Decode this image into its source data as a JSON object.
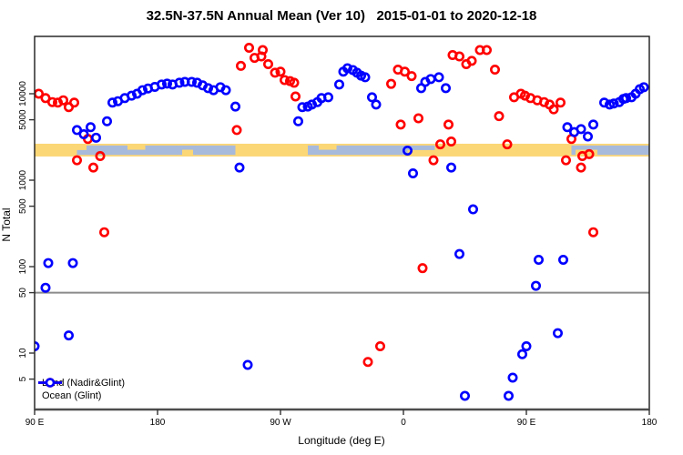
{
  "chart_data": {
    "type": "scatter",
    "title": "32.5N-37.5N Annual Mean (Ver 10)   2015-01-01 to 2020-12-18",
    "xlabel": "Longitude (deg E)",
    "ylabel": "N Total",
    "x_axis": {
      "note": "longitude axis unwrapped eastward, starts at 90E and wraps past 180 through 90W, 0, 90E to 180",
      "range": [
        90,
        540
      ],
      "ticks": [
        {
          "pos": 90,
          "label": "90 E"
        },
        {
          "pos": 180,
          "label": "180"
        },
        {
          "pos": 270,
          "label": "90 W"
        },
        {
          "pos": 360,
          "label": "0"
        },
        {
          "pos": 450,
          "label": "90 E"
        },
        {
          "pos": 540,
          "label": "180"
        }
      ]
    },
    "y_axis": {
      "scale": "log10",
      "tick_values": [
        10000,
        5000,
        1000,
        500,
        100,
        50,
        10,
        5
      ],
      "tick_labels": [
        "10000",
        "5000",
        "1000",
        "500",
        "100",
        "50",
        "10",
        "5"
      ],
      "top_value": 46000,
      "bottom_value": 2.2,
      "hline_value": 50
    },
    "series": [
      {
        "name": "Land (Nadir&Glint)",
        "color": "#ff0000",
        "points": [
          [
            93,
            10000
          ],
          [
            98,
            8900
          ],
          [
            103,
            8000
          ],
          [
            107,
            7900
          ],
          [
            111,
            8400
          ],
          [
            115,
            7000
          ],
          [
            119,
            7900
          ],
          [
            129,
            3000
          ],
          [
            121,
            1700
          ],
          [
            133,
            1400
          ],
          [
            138,
            1900
          ],
          [
            141,
            250
          ],
          [
            238,
            3800
          ],
          [
            241,
            21000
          ],
          [
            247,
            34000
          ],
          [
            251,
            26000
          ],
          [
            256,
            27000
          ],
          [
            257,
            32000
          ],
          [
            261,
            22000
          ],
          [
            266,
            17500
          ],
          [
            270,
            18000
          ],
          [
            273,
            14400
          ],
          [
            277,
            14000
          ],
          [
            280,
            13400
          ],
          [
            281,
            9300
          ],
          [
            334,
            7.9
          ],
          [
            343,
            12
          ],
          [
            351,
            13000
          ],
          [
            356,
            19000
          ],
          [
            361,
            18000
          ],
          [
            366,
            16000
          ],
          [
            371,
            5200
          ],
          [
            358,
            4400
          ],
          [
            382,
            1700
          ],
          [
            387,
            2600
          ],
          [
            393,
            4400
          ],
          [
            395,
            2800
          ],
          [
            374,
            96
          ],
          [
            396,
            28000
          ],
          [
            401,
            27000
          ],
          [
            406,
            22000
          ],
          [
            410,
            24000
          ],
          [
            416,
            32000
          ],
          [
            421,
            32000
          ],
          [
            427,
            19000
          ],
          [
            430,
            5500
          ],
          [
            436,
            2600
          ],
          [
            441,
            9100
          ],
          [
            446,
            10000
          ],
          [
            449,
            9500
          ],
          [
            453,
            8900
          ],
          [
            458,
            8400
          ],
          [
            463,
            8000
          ],
          [
            467,
            7500
          ],
          [
            470,
            6600
          ],
          [
            475,
            7900
          ],
          [
            483,
            3000
          ],
          [
            479,
            1700
          ],
          [
            491,
            1900
          ],
          [
            490,
            1400
          ],
          [
            496,
            2000
          ],
          [
            499,
            250
          ]
        ]
      },
      {
        "name": "Ocean (Glint)",
        "color": "#0000ff",
        "points": [
          [
            100,
            110
          ],
          [
            118,
            110
          ],
          [
            98,
            57
          ],
          [
            115,
            16
          ],
          [
            90,
            12
          ],
          [
            121,
            3800
          ],
          [
            126,
            3400
          ],
          [
            131,
            4100
          ],
          [
            135,
            3100
          ],
          [
            143,
            4800
          ],
          [
            147,
            7900
          ],
          [
            151,
            8200
          ],
          [
            156,
            8900
          ],
          [
            161,
            9500
          ],
          [
            165,
            10000
          ],
          [
            169,
            11000
          ],
          [
            173,
            11500
          ],
          [
            178,
            12000
          ],
          [
            183,
            12800
          ],
          [
            187,
            13100
          ],
          [
            191,
            12800
          ],
          [
            196,
            13400
          ],
          [
            200,
            13700
          ],
          [
            205,
            13700
          ],
          [
            209,
            13400
          ],
          [
            213,
            12500
          ],
          [
            217,
            11600
          ],
          [
            221,
            11000
          ],
          [
            226,
            11900
          ],
          [
            230,
            11000
          ],
          [
            237,
            7100
          ],
          [
            240,
            1400
          ],
          [
            246,
            7.3
          ],
          [
            283,
            4800
          ],
          [
            286,
            7000
          ],
          [
            290,
            7100
          ],
          [
            293,
            7500
          ],
          [
            297,
            8000
          ],
          [
            300,
            8900
          ],
          [
            305,
            9100
          ],
          [
            313,
            12800
          ],
          [
            316,
            18000
          ],
          [
            319,
            19700
          ],
          [
            323,
            18800
          ],
          [
            326,
            17500
          ],
          [
            329,
            16200
          ],
          [
            332,
            15500
          ],
          [
            337,
            9100
          ],
          [
            340,
            7500
          ],
          [
            363,
            2200
          ],
          [
            367,
            1200
          ],
          [
            373,
            11600
          ],
          [
            376,
            13700
          ],
          [
            380,
            14800
          ],
          [
            386,
            15500
          ],
          [
            391,
            11600
          ],
          [
            395,
            1400
          ],
          [
            411,
            460
          ],
          [
            401,
            140
          ],
          [
            459,
            120
          ],
          [
            477,
            120
          ],
          [
            457,
            60
          ],
          [
            405,
            3.2
          ],
          [
            437,
            3.2
          ],
          [
            440,
            5.2
          ],
          [
            447,
            9.7
          ],
          [
            450,
            12
          ],
          [
            473,
            17
          ],
          [
            480,
            4100
          ],
          [
            485,
            3600
          ],
          [
            490,
            3900
          ],
          [
            495,
            3200
          ],
          [
            499,
            4400
          ],
          [
            507,
            7900
          ],
          [
            511,
            7500
          ],
          [
            514,
            7700
          ],
          [
            518,
            8000
          ],
          [
            521,
            8700
          ],
          [
            523,
            8900
          ],
          [
            527,
            9100
          ],
          [
            530,
            10000
          ],
          [
            533,
            11300
          ],
          [
            536,
            11900
          ]
        ]
      }
    ],
    "density_bands": [
      {
        "name": "land-density-band",
        "color": "#fcd776",
        "value_range": [
          1880,
          2640
        ],
        "segments": [
          [
            90,
            540
          ]
        ]
      },
      {
        "name": "ocean-density-band",
        "color": "#a7badb",
        "value_range": [
          1960,
          2520
        ],
        "segments": [
          [
            128,
            237
          ],
          [
            290,
            363
          ],
          [
            483,
            540
          ]
        ]
      }
    ],
    "band_patches": [
      {
        "color": "#fcd776",
        "lon": [
          158,
          171
        ],
        "v": [
          2250,
          2640
        ]
      },
      {
        "color": "#fcd776",
        "lon": [
          198,
          206
        ],
        "v": [
          1880,
          2250
        ]
      },
      {
        "color": "#fcd776",
        "lon": [
          298,
          311
        ],
        "v": [
          2250,
          2640
        ]
      },
      {
        "color": "#fcd776",
        "lon": [
          486,
          502
        ],
        "v": [
          1880,
          2250
        ]
      },
      {
        "color": "#a7badb",
        "lon": [
          121,
          128
        ],
        "v": [
          1960,
          2230
        ]
      },
      {
        "color": "#a7badb",
        "lon": [
          363,
          383
        ],
        "v": [
          2230,
          2520
        ]
      }
    ],
    "legend": {
      "position": "bottom-left",
      "items": [
        "Land (Nadir&Glint)",
        "Ocean (Glint)"
      ]
    }
  }
}
